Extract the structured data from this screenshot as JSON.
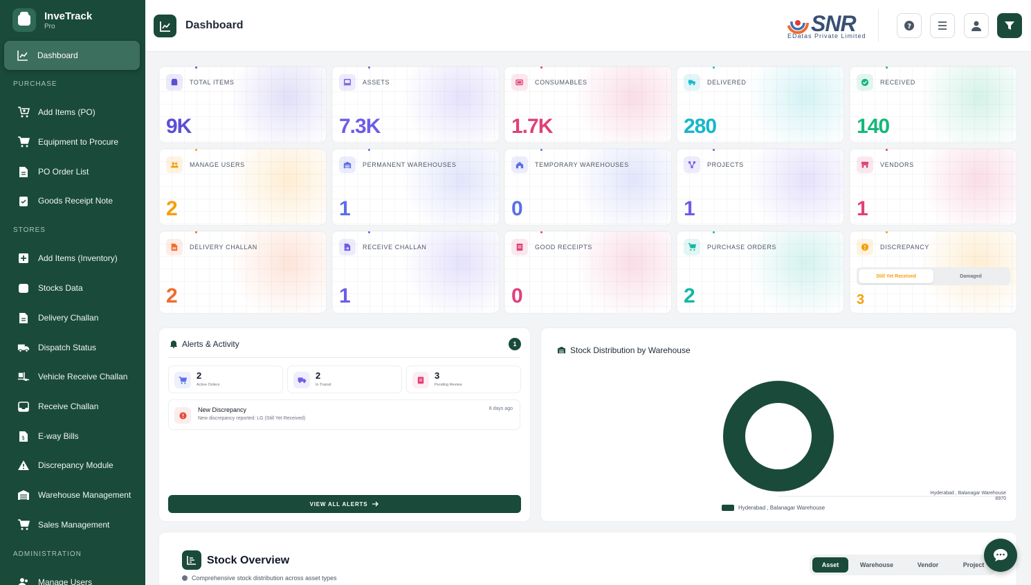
{
  "app": {
    "name": "InveTrack",
    "tier": "Pro"
  },
  "header": {
    "title": "Dashboard",
    "logo_word": "SNR",
    "logo_sub": "EDatas Private Limited"
  },
  "sidebar": {
    "active": {
      "label": "Dashboard",
      "icon": "chart-line-icon"
    },
    "sections": {
      "purchase": "PURCHASE",
      "stores": "STORES",
      "administration": "ADMINISTRATION"
    },
    "purchase_items": [
      {
        "label": "Add Items (PO)",
        "icon": "cart-plus-icon"
      },
      {
        "label": "Equipment to Procure",
        "icon": "cart-icon"
      },
      {
        "label": "PO Order List",
        "icon": "document-icon"
      },
      {
        "label": "Goods Receipt Note",
        "icon": "clipboard-check-icon"
      }
    ],
    "stores_items": [
      {
        "label": "Add Items (Inventory)",
        "icon": "plus-square-icon"
      },
      {
        "label": "Stocks Data",
        "icon": "database-icon"
      },
      {
        "label": "Delivery Challan",
        "icon": "document-icon"
      },
      {
        "label": "Dispatch Status",
        "icon": "truck-icon"
      },
      {
        "label": "Vehicle Receive Challan",
        "icon": "truck-loading-icon"
      },
      {
        "label": "Receive Challan",
        "icon": "inbox-icon"
      },
      {
        "label": "E-way Bills",
        "icon": "receipt-icon"
      },
      {
        "label": "Discrepancy Module",
        "icon": "warning-icon"
      },
      {
        "label": "Warehouse Management",
        "icon": "warehouse-icon"
      },
      {
        "label": "Sales Management",
        "icon": "cart-icon"
      }
    ],
    "admin_items": [
      {
        "label": "Manage Users",
        "icon": "users-icon"
      }
    ]
  },
  "stats": [
    {
      "label": "TOTAL ITEMS",
      "value": "9K",
      "color": "#5b4fd6",
      "icon": "box-icon"
    },
    {
      "label": "ASSETS",
      "value": "7.3K",
      "color": "#6d5ce8",
      "icon": "laptop-icon"
    },
    {
      "label": "CONSUMABLES",
      "value": "1.7K",
      "color": "#e0407a",
      "icon": "battery-icon"
    },
    {
      "label": "DELIVERED",
      "value": "280",
      "color": "#14b8c9",
      "icon": "truck-icon"
    },
    {
      "label": "RECEIVED",
      "value": "140",
      "color": "#14b87a",
      "icon": "check-circle-icon"
    },
    {
      "label": "MANAGE USERS",
      "value": "2",
      "color": "#f59e0b",
      "icon": "users-icon"
    },
    {
      "label": "PERMANENT WAREHOUSES",
      "value": "1",
      "color": "#5b6ee8",
      "icon": "warehouse-icon"
    },
    {
      "label": "TEMPORARY WAREHOUSES",
      "value": "0",
      "color": "#5b6ee8",
      "icon": "home-icon"
    },
    {
      "label": "PROJECTS",
      "value": "1",
      "color": "#6d5ce8",
      "icon": "project-diagram-icon"
    },
    {
      "label": "VENDORS",
      "value": "1",
      "color": "#e0407a",
      "icon": "store-icon"
    },
    {
      "label": "DELIVERY CHALLAN",
      "value": "2",
      "color": "#f26a2e",
      "icon": "file-icon"
    },
    {
      "label": "RECEIVE CHALLAN",
      "value": "1",
      "color": "#6d5ce8",
      "icon": "file-import-icon"
    },
    {
      "label": "GOOD RECEIPTS",
      "value": "0",
      "color": "#e0407a",
      "icon": "receipt-icon"
    },
    {
      "label": "PURCHASE ORDERS",
      "value": "2",
      "color": "#14b8a6",
      "icon": "cart-icon"
    },
    {
      "label": "DISCREPANCY",
      "value": "3",
      "color": "#f59e0b",
      "icon": "alert-circle-icon"
    }
  ],
  "discrepancy_toggle": {
    "option1": "Still Yet Received",
    "option2": "Damaged"
  },
  "alerts": {
    "title": "Alerts & Activity",
    "badge": "1",
    "mini": [
      {
        "num": "2",
        "label": "Active Orders",
        "icon": "cart-icon",
        "color": "#5b6ee8"
      },
      {
        "num": "2",
        "label": "In Transit",
        "icon": "truck-icon",
        "color": "#6d5ce8"
      },
      {
        "num": "3",
        "label": "Pending Review",
        "icon": "clipboard-icon",
        "color": "#e0407a"
      }
    ],
    "item": {
      "title": "New Discrepancy",
      "desc": "New discrepancy reported: LG (Still Yet Received)",
      "time": "8 days ago"
    },
    "view_all": "VIEW ALL ALERTS"
  },
  "stock_dist": {
    "title": "Stock Distribution by Warehouse",
    "callout_label": "Hyderabad , Balanagar Warehouse",
    "callout_value": "8970",
    "legend": "Hyderabad , Balanagar Warehouse"
  },
  "chart_data": {
    "type": "pie",
    "title": "Stock Distribution by Warehouse",
    "categories": [
      "Hyderabad , Balanagar Warehouse"
    ],
    "values": [
      8970
    ],
    "colors": [
      "#1a4a3a"
    ],
    "legend": "bottom"
  },
  "overview": {
    "title": "Stock Overview",
    "subtitle": "Comprehensive stock distribution across asset types",
    "tabs": [
      "Asset",
      "Warehouse",
      "Vendor",
      "Project"
    ]
  },
  "colors": {
    "brand": "#1a4a3a",
    "accent": "#3d6f5e"
  }
}
